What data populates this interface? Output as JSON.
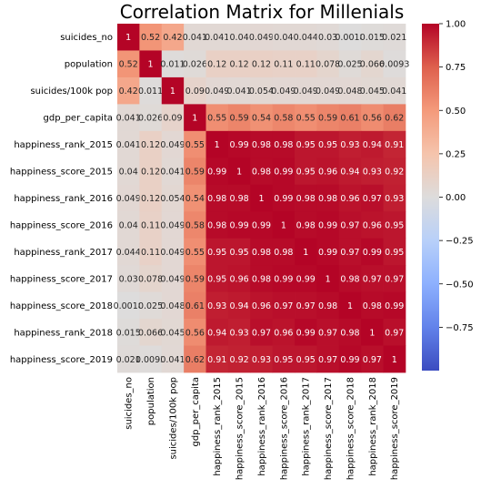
{
  "chart_data": {
    "type": "heatmap",
    "title": "Correlation Matrix for Millenials",
    "rows": [
      "suicides_no",
      "population",
      "suicides/100k pop",
      "gdp_per_capita",
      "happiness_rank_2015",
      "happiness_score_2015",
      "happiness_rank_2016",
      "happiness_score_2016",
      "happiness_rank_2017",
      "happiness_score_2017",
      "happiness_score_2018",
      "happiness_rank_2018",
      "happiness_score_2019"
    ],
    "columns": [
      "suicides_no",
      "population",
      "suicides/100k pop",
      "gdp_per_capita",
      "happiness_rank_2015",
      "happiness_score_2015",
      "happiness_rank_2016",
      "happiness_score_2016",
      "happiness_rank_2017",
      "happiness_score_2017",
      "happiness_score_2018",
      "happiness_rank_2018",
      "happiness_score_2019"
    ],
    "values": [
      [
        1,
        0.52,
        0.42,
        0.041,
        0.041,
        0.04,
        0.049,
        0.04,
        0.044,
        0.03,
        0.0018,
        0.015,
        0.021
      ],
      [
        0.52,
        1,
        0.011,
        0.026,
        0.12,
        0.12,
        0.12,
        0.11,
        0.11,
        0.078,
        0.025,
        0.066,
        0.0093
      ],
      [
        0.42,
        0.011,
        1,
        0.09,
        0.049,
        0.041,
        0.054,
        0.049,
        0.049,
        0.049,
        0.048,
        0.045,
        0.041
      ],
      [
        0.041,
        0.026,
        0.09,
        1,
        0.55,
        0.59,
        0.54,
        0.58,
        0.55,
        0.59,
        0.61,
        0.56,
        0.62
      ],
      [
        0.041,
        0.12,
        0.049,
        0.55,
        1,
        0.99,
        0.98,
        0.98,
        0.95,
        0.95,
        0.93,
        0.94,
        0.91
      ],
      [
        0.04,
        0.12,
        0.041,
        0.59,
        0.99,
        1,
        0.98,
        0.99,
        0.95,
        0.96,
        0.94,
        0.93,
        0.92
      ],
      [
        0.049,
        0.12,
        0.054,
        0.54,
        0.98,
        0.98,
        1,
        0.99,
        0.98,
        0.98,
        0.96,
        0.97,
        0.93
      ],
      [
        0.04,
        0.11,
        0.049,
        0.58,
        0.98,
        0.99,
        0.99,
        1,
        0.98,
        0.99,
        0.97,
        0.96,
        0.95
      ],
      [
        0.044,
        0.11,
        0.049,
        0.55,
        0.95,
        0.95,
        0.98,
        0.98,
        1,
        0.99,
        0.97,
        0.99,
        0.95
      ],
      [
        0.03,
        0.078,
        0.049,
        0.59,
        0.95,
        0.96,
        0.98,
        0.99,
        0.99,
        1,
        0.98,
        0.97,
        0.97
      ],
      [
        0.0018,
        0.025,
        0.048,
        0.61,
        0.93,
        0.94,
        0.96,
        0.97,
        0.97,
        0.98,
        1,
        0.98,
        0.99
      ],
      [
        0.015,
        0.066,
        0.045,
        0.56,
        0.94,
        0.93,
        0.97,
        0.96,
        0.99,
        0.97,
        0.98,
        1,
        0.97
      ],
      [
        0.021,
        0.0093,
        0.041,
        0.62,
        0.91,
        0.92,
        0.93,
        0.95,
        0.95,
        0.97,
        0.99,
        0.97,
        1
      ]
    ],
    "display_values": [
      [
        "1",
        "0.52",
        "0.42",
        "0.041",
        "0.041",
        "0.04",
        "0.049",
        "0.04",
        "0.044",
        "0.03",
        "0.0018",
        "0.015",
        "0.021"
      ],
      [
        "0.52",
        "1",
        "0.011",
        "0.026",
        "0.12",
        "0.12",
        "0.12",
        "0.11",
        "0.11",
        "0.078",
        "0.025",
        "0.066",
        "0.0093"
      ],
      [
        "0.42",
        "0.011",
        "1",
        "0.09",
        "0.049",
        "0.041",
        "0.054",
        "0.049",
        "0.049",
        "0.049",
        "0.048",
        "0.045",
        "0.041"
      ],
      [
        "0.041",
        "0.026",
        "0.09",
        "1",
        "0.55",
        "0.59",
        "0.54",
        "0.58",
        "0.55",
        "0.59",
        "0.61",
        "0.56",
        "0.62"
      ],
      [
        "0.041",
        "0.12",
        "0.049",
        "0.55",
        "1",
        "0.99",
        "0.98",
        "0.98",
        "0.95",
        "0.95",
        "0.93",
        "0.94",
        "0.91"
      ],
      [
        "0.04",
        "0.12",
        "0.041",
        "0.59",
        "0.99",
        "1",
        "0.98",
        "0.99",
        "0.95",
        "0.96",
        "0.94",
        "0.93",
        "0.92"
      ],
      [
        "0.049",
        "0.12",
        "0.054",
        "0.54",
        "0.98",
        "0.98",
        "1",
        "0.99",
        "0.98",
        "0.98",
        "0.96",
        "0.97",
        "0.93"
      ],
      [
        "0.04",
        "0.11",
        "0.049",
        "0.58",
        "0.98",
        "0.99",
        "0.99",
        "1",
        "0.98",
        "0.99",
        "0.97",
        "0.96",
        "0.95"
      ],
      [
        "0.044",
        "0.11",
        "0.049",
        "0.55",
        "0.95",
        "0.95",
        "0.98",
        "0.98",
        "1",
        "0.99",
        "0.97",
        "0.99",
        "0.95"
      ],
      [
        "0.03",
        "0.078",
        "0.049",
        "0.59",
        "0.95",
        "0.96",
        "0.98",
        "0.99",
        "0.99",
        "1",
        "0.98",
        "0.97",
        "0.97"
      ],
      [
        "0.0018",
        "0.025",
        "0.048",
        "0.61",
        "0.93",
        "0.94",
        "0.96",
        "0.97",
        "0.97",
        "0.98",
        "1",
        "0.98",
        "0.99"
      ],
      [
        "0.015",
        "0.066",
        "0.045",
        "0.56",
        "0.94",
        "0.93",
        "0.97",
        "0.96",
        "0.99",
        "0.97",
        "0.98",
        "1",
        "0.97"
      ],
      [
        "0.021",
        "0.0093",
        "0.041",
        "0.62",
        "0.91",
        "0.92",
        "0.93",
        "0.95",
        "0.95",
        "0.97",
        "0.99",
        "0.97",
        "1"
      ]
    ],
    "colorbar": {
      "vmin": -1,
      "vmax": 1,
      "ticks": [
        1.0,
        0.75,
        0.5,
        0.25,
        0.0,
        -0.25,
        -0.5,
        -0.75
      ],
      "tick_labels": [
        "1.00",
        "0.75",
        "0.50",
        "0.25",
        "0.00",
        "−0.25",
        "−0.50",
        "−0.75"
      ],
      "colormap": "coolwarm",
      "color_stops": [
        "#3b4cc0",
        "#6282ea",
        "#8db0fe",
        "#b8d0f9",
        "#dddcdc",
        "#f5c4ac",
        "#f49a7b",
        "#de604d",
        "#b40426"
      ]
    }
  }
}
